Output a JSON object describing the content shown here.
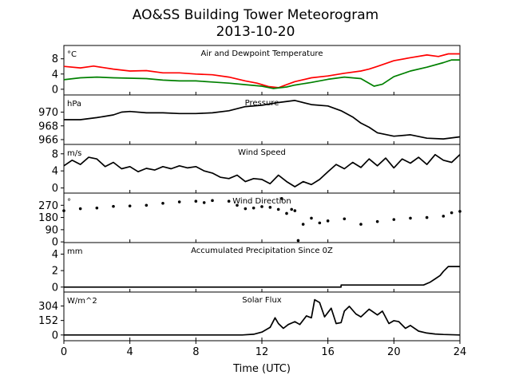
{
  "title": "AO&SS Building Tower Meteorogram",
  "subtitle": "2013-10-20",
  "xlabel": "Time (UTC)",
  "chart_data": [
    {
      "type": "line",
      "title": "Air and Dewpoint Temperature",
      "unit": "°C",
      "x_range": [
        0,
        24
      ],
      "ylim": [
        -1.5,
        11.5
      ],
      "yticks": [
        "0",
        "4",
        "8"
      ],
      "ytick_values": [
        0,
        4,
        8
      ],
      "series": [
        {
          "color": "#ff0000",
          "x": [
            0,
            1,
            1.8,
            3,
            4,
            5,
            6,
            7,
            8,
            9,
            10,
            11,
            11.7,
            12.4,
            13,
            13.5,
            14,
            15,
            16,
            17,
            18,
            18.5,
            19,
            20,
            21,
            22,
            22.7,
            23.3,
            24
          ],
          "y": [
            6,
            5.6,
            6.1,
            5.3,
            4.8,
            4.9,
            4.3,
            4.3,
            4,
            3.8,
            3.2,
            2.2,
            1.6,
            0.7,
            0.4,
            1.2,
            2.0,
            3.0,
            3.5,
            4.2,
            4.8,
            5.3,
            6.0,
            7.5,
            8.3,
            9.0,
            8.6,
            9.3,
            9.3
          ]
        },
        {
          "color": "#008000",
          "x": [
            0,
            1,
            2,
            3,
            4,
            5,
            6,
            7,
            8,
            9,
            10,
            11,
            12,
            12.7,
            13.5,
            14,
            15,
            16,
            17,
            18,
            18.8,
            19.3,
            20,
            21,
            22,
            23,
            23.5,
            24
          ],
          "y": [
            2.5,
            3.0,
            3.2,
            3.0,
            2.9,
            2.8,
            2.4,
            2.2,
            2.2,
            1.9,
            1.6,
            1.2,
            0.8,
            0.2,
            0.6,
            1.1,
            1.8,
            2.6,
            3.2,
            2.8,
            0.8,
            1.3,
            3.3,
            4.8,
            5.8,
            7.0,
            7.7,
            7.7
          ]
        }
      ]
    },
    {
      "type": "line",
      "title": "Pressure",
      "unit": "hPa",
      "x_range": [
        0,
        24
      ],
      "ylim": [
        965.3,
        972.5
      ],
      "yticks": [
        "966",
        "968",
        "970"
      ],
      "ytick_values": [
        966,
        968,
        970
      ],
      "series": [
        {
          "color": "#000000",
          "x": [
            0,
            1,
            2,
            3,
            3.5,
            4,
            5,
            6,
            7,
            8,
            9,
            10,
            11,
            12,
            13,
            14,
            15,
            16,
            16.8,
            17.5,
            18,
            18.5,
            19,
            20,
            21,
            22,
            23,
            24
          ],
          "y": [
            968.9,
            968.9,
            969.2,
            969.6,
            970.0,
            970.1,
            969.9,
            969.9,
            969.8,
            969.8,
            969.9,
            970.2,
            970.8,
            971.0,
            971.4,
            971.7,
            971.1,
            970.9,
            970.2,
            969.3,
            968.4,
            967.8,
            967.0,
            966.5,
            966.7,
            966.2,
            966.1,
            966.4
          ]
        }
      ]
    },
    {
      "type": "line",
      "title": "Wind Speed",
      "unit": "m/s",
      "x_range": [
        0,
        24
      ],
      "ylim": [
        -1.2,
        10.2
      ],
      "yticks": [
        "0",
        "4",
        "8"
      ],
      "ytick_values": [
        0,
        4,
        8
      ],
      "series": [
        {
          "color": "#000000",
          "x": [
            0,
            0.5,
            1,
            1.5,
            2,
            2.5,
            3,
            3.5,
            4,
            4.5,
            5,
            5.5,
            6,
            6.5,
            7,
            7.5,
            8,
            8.5,
            9,
            9.5,
            10,
            10.5,
            11,
            11.5,
            12,
            12.5,
            13,
            13.5,
            14,
            14.5,
            15,
            15.5,
            16,
            16.5,
            17,
            17.5,
            18,
            18.5,
            19,
            19.5,
            20,
            20.5,
            21,
            21.5,
            22,
            22.5,
            23,
            23.5,
            24
          ],
          "y": [
            5.2,
            6.5,
            5.5,
            7.2,
            6.8,
            5.0,
            6.0,
            4.5,
            5.0,
            3.8,
            4.6,
            4.2,
            5.0,
            4.5,
            5.2,
            4.7,
            5.0,
            4.0,
            3.5,
            2.5,
            2.2,
            3.0,
            1.5,
            2.2,
            2.0,
            1.0,
            3.0,
            1.5,
            0.3,
            1.5,
            0.8,
            2.0,
            3.8,
            5.5,
            4.5,
            6.0,
            4.8,
            6.8,
            5.2,
            7.0,
            4.7,
            6.8,
            5.8,
            7.2,
            5.5,
            7.8,
            6.5,
            6.0,
            7.8
          ]
        }
      ]
    },
    {
      "type": "scatter",
      "title": "Wind Direction",
      "unit": "°",
      "x_range": [
        0,
        24
      ],
      "ylim": [
        -5,
        360
      ],
      "yticks": [
        "0",
        "90",
        "180",
        "270"
      ],
      "ytick_values": [
        0,
        90,
        180,
        270
      ],
      "series": [
        {
          "color": "#000000",
          "x": [
            0,
            1,
            2,
            3,
            4,
            5,
            6,
            7,
            8,
            8.5,
            9,
            10,
            10.5,
            11,
            11.5,
            12,
            12.5,
            13,
            13.2,
            13.5,
            13.8,
            14,
            14.2,
            14.5,
            15,
            15.5,
            16,
            17,
            18,
            19,
            20,
            21,
            22,
            23,
            23.5,
            24
          ],
          "y": [
            230,
            245,
            250,
            262,
            265,
            270,
            285,
            295,
            300,
            290,
            305,
            300,
            270,
            245,
            250,
            260,
            255,
            240,
            320,
            210,
            240,
            230,
            10,
            130,
            175,
            140,
            155,
            170,
            130,
            150,
            165,
            175,
            180,
            190,
            215,
            225
          ]
        }
      ]
    },
    {
      "type": "line",
      "title": "Accumulated Precipitation Since 0Z",
      "unit": "mm",
      "x_range": [
        0,
        24
      ],
      "ylim": [
        -0.6,
        5.4
      ],
      "yticks": [
        "0",
        "2",
        "4"
      ],
      "ytick_values": [
        0,
        2,
        4
      ],
      "series": [
        {
          "color": "#000000",
          "x": [
            0,
            16.8,
            16.8,
            21.8,
            22.2,
            22.5,
            22.8,
            23.0,
            23.3,
            24
          ],
          "y": [
            0,
            0,
            0.25,
            0.25,
            0.6,
            1.0,
            1.4,
            1.9,
            2.5,
            2.5
          ]
        }
      ]
    },
    {
      "type": "line",
      "title": "Solar Flux",
      "unit": "W/m^2",
      "x_range": [
        0,
        24
      ],
      "ylim": [
        -60,
        450
      ],
      "yticks": [
        "0",
        "152",
        "304"
      ],
      "ytick_values": [
        0,
        152,
        304
      ],
      "series": [
        {
          "color": "#000000",
          "x": [
            0,
            10.8,
            11.5,
            12,
            12.5,
            12.8,
            13,
            13.3,
            13.6,
            14,
            14.3,
            14.7,
            15,
            15.2,
            15.5,
            15.8,
            16.2,
            16.5,
            16.8,
            17,
            17.3,
            17.7,
            18,
            18.5,
            19,
            19.3,
            19.7,
            20,
            20.3,
            20.7,
            21,
            21.5,
            22,
            22.5,
            23,
            24
          ],
          "y": [
            0,
            0,
            8,
            30,
            80,
            180,
            120,
            70,
            110,
            140,
            110,
            200,
            180,
            370,
            340,
            190,
            280,
            120,
            130,
            250,
            300,
            220,
            190,
            270,
            210,
            250,
            120,
            150,
            140,
            70,
            100,
            40,
            20,
            10,
            5,
            0
          ]
        }
      ]
    }
  ]
}
